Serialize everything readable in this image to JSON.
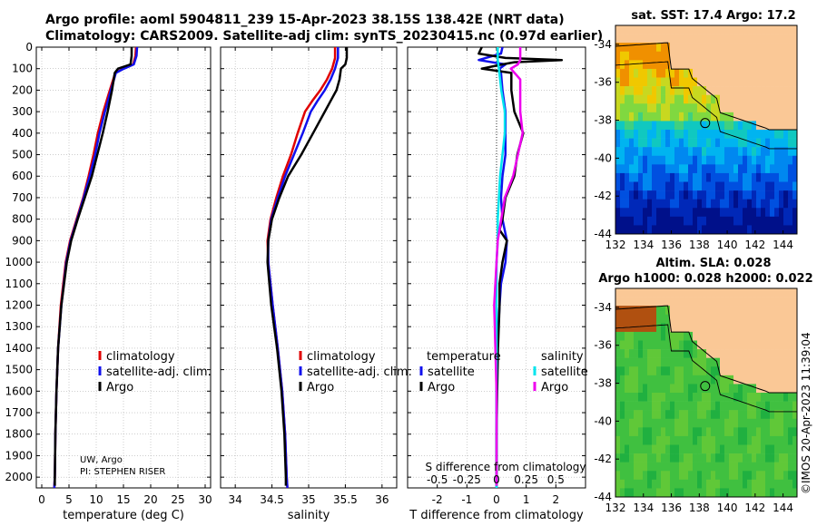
{
  "title_line1": "Argo profile: aoml 5904811_239 15-Apr-2023 38.15S 138.42E (NRT data)",
  "title_line2": "Climatology: CARS2009. Satellite-adj clim: synTS_20230415.nc (0.97d earlier)",
  "depth_ticks": [
    0,
    100,
    200,
    300,
    400,
    500,
    600,
    700,
    800,
    900,
    1000,
    1100,
    1200,
    1300,
    1400,
    1500,
    1600,
    1700,
    1800,
    1900,
    2000
  ],
  "colors": {
    "climatology": "#e00000",
    "satellite": "#1010ee",
    "argo": "#000000",
    "sal_sat": "#00e5ee",
    "sal_argo": "#ee00ee",
    "land": "#fac896",
    "grid": "#b0b0b0"
  },
  "chart_data": [
    {
      "type": "line",
      "panel": "temperature",
      "xlabel": "temperature (deg C)",
      "ylabel": "",
      "xlim": [
        -1,
        31
      ],
      "ylim": [
        2050,
        0
      ],
      "xticks": [
        "0",
        "5",
        "10",
        "15",
        "20",
        "25",
        "30"
      ],
      "xtick_values": [
        0,
        5,
        10,
        15,
        20,
        25,
        30
      ],
      "legend": [
        "climatology",
        "satellite-adj. clim.",
        "Argo"
      ],
      "series": [
        {
          "name": "climatology",
          "color": "#e00000",
          "depth": [
            0,
            40,
            80,
            100,
            120,
            200,
            300,
            400,
            500,
            600,
            700,
            800,
            900,
            1000,
            1200,
            1400,
            1600,
            1800,
            2000,
            2050
          ],
          "values": [
            17.3,
            17.2,
            16.8,
            15,
            13.5,
            12.5,
            11.3,
            10.3,
            9.5,
            8.6,
            7.6,
            6.4,
            5.2,
            4.4,
            3.5,
            3.0,
            2.7,
            2.5,
            2.4,
            2.3
          ]
        },
        {
          "name": "satellite-adj. clim.",
          "color": "#1010ee",
          "depth": [
            0,
            40,
            80,
            100,
            120,
            200,
            300,
            400,
            500,
            600,
            700,
            800,
            900,
            1000,
            1200,
            1400,
            1600,
            1800,
            2000,
            2050
          ],
          "values": [
            17.5,
            17.4,
            16.9,
            15.1,
            13.6,
            12.7,
            11.6,
            10.6,
            9.8,
            8.8,
            7.7,
            6.5,
            5.3,
            4.5,
            3.6,
            3.0,
            2.7,
            2.5,
            2.4,
            2.3
          ]
        },
        {
          "name": "Argo",
          "color": "#000000",
          "depth": [
            0,
            40,
            80,
            100,
            120,
            200,
            300,
            400,
            500,
            600,
            700,
            800,
            900,
            1000,
            1200,
            1400,
            1600,
            1800,
            2000,
            2040
          ],
          "values": [
            16.5,
            16.5,
            16.3,
            14.0,
            13.4,
            12.9,
            12.1,
            11.2,
            10.2,
            9.2,
            7.9,
            6.6,
            5.4,
            4.6,
            3.6,
            3.0,
            2.7,
            2.5,
            2.4,
            2.4
          ]
        }
      ]
    },
    {
      "type": "line",
      "panel": "salinity",
      "xlabel": "salinity",
      "ylabel": "",
      "xlim": [
        33.8,
        36.2
      ],
      "ylim": [
        2050,
        0
      ],
      "xticks": [
        "34",
        "34.5",
        "35",
        "35.5",
        "36"
      ],
      "xtick_values": [
        34,
        34.5,
        35,
        35.5,
        36
      ],
      "legend": [
        "climatology",
        "satellite-adj. clim.",
        "Argo"
      ],
      "series": [
        {
          "name": "climatology",
          "color": "#e00000",
          "depth": [
            0,
            50,
            100,
            150,
            200,
            250,
            300,
            400,
            500,
            600,
            700,
            800,
            900,
            1000,
            1200,
            1400,
            1600,
            1800,
            2000,
            2050
          ],
          "values": [
            35.36,
            35.36,
            35.32,
            35.25,
            35.16,
            35.05,
            34.95,
            34.85,
            34.76,
            34.65,
            34.56,
            34.48,
            34.44,
            34.45,
            34.51,
            34.58,
            34.64,
            34.68,
            34.7,
            34.71
          ]
        },
        {
          "name": "satellite-adj. clim.",
          "color": "#1010ee",
          "depth": [
            0,
            50,
            100,
            150,
            200,
            250,
            300,
            400,
            500,
            600,
            700,
            800,
            900,
            1000,
            1200,
            1400,
            1600,
            1800,
            2000,
            2050
          ],
          "values": [
            35.4,
            35.4,
            35.36,
            35.3,
            35.22,
            35.12,
            35.03,
            34.92,
            34.8,
            34.68,
            34.58,
            34.49,
            34.45,
            34.45,
            34.51,
            34.58,
            34.64,
            34.68,
            34.7,
            34.71
          ]
        },
        {
          "name": "Argo",
          "color": "#000000",
          "depth": [
            0,
            50,
            80,
            100,
            150,
            200,
            250,
            300,
            400,
            500,
            600,
            700,
            800,
            900,
            1000,
            1200,
            1400,
            1600,
            1800,
            2000,
            2040
          ],
          "values": [
            35.52,
            35.52,
            35.5,
            35.44,
            35.42,
            35.38,
            35.3,
            35.22,
            35.06,
            34.9,
            34.72,
            34.6,
            34.5,
            34.45,
            34.44,
            34.49,
            34.57,
            34.63,
            34.67,
            34.69,
            34.69
          ]
        }
      ]
    },
    {
      "type": "line",
      "panel": "difference",
      "xlabel": "T difference from climatology",
      "xlabel_top": "S difference from climatology",
      "ylabel": "",
      "xlim": [
        -3,
        3
      ],
      "ylim": [
        2050,
        0
      ],
      "xticks": [
        "-2",
        "-1",
        "0",
        "1",
        "2"
      ],
      "xtick_values": [
        -2,
        -1,
        0,
        1,
        2
      ],
      "s_ticks": [
        "-0.5",
        "-0.25",
        "0",
        "0.25",
        "0.5"
      ],
      "s_tick_values": [
        -0.5,
        -0.25,
        0,
        0.25,
        0.5
      ],
      "legend_temperature_title": "temperature",
      "legend_salinity_title": "salinity",
      "legend": [
        "satellite",
        "Argo",
        "satellite",
        "Argo"
      ],
      "series": [
        {
          "name": "satellite",
          "quantity": "temperature",
          "color": "#1010ee",
          "depth": [
            0,
            30,
            60,
            80,
            100,
            120,
            200,
            300,
            400,
            500,
            600,
            700,
            800,
            900,
            1000,
            1100,
            1200,
            1400,
            1600,
            1800,
            2000,
            2050
          ],
          "values": [
            0.2,
            0.15,
            -0.6,
            0.3,
            0.1,
            0.15,
            0.2,
            0.3,
            0.3,
            0.3,
            0.2,
            0.15,
            0.2,
            0.35,
            0.3,
            0.15,
            0.1,
            0.02,
            0,
            0,
            0,
            0
          ]
        },
        {
          "name": "Argo",
          "quantity": "temperature",
          "color": "#000000",
          "depth": [
            0,
            30,
            50,
            60,
            70,
            80,
            100,
            120,
            200,
            300,
            400,
            500,
            600,
            700,
            800,
            850,
            900,
            1000,
            1100,
            1200,
            1400,
            1600,
            1800,
            2000,
            2040
          ],
          "values": [
            -0.5,
            -0.6,
            0.3,
            2.2,
            0.6,
            0.2,
            -0.5,
            0.5,
            0.5,
            0.6,
            0.9,
            0.7,
            0.6,
            0.3,
            0.2,
            0.1,
            0.35,
            0.2,
            0.1,
            0.1,
            0.05,
            0.02,
            0,
            0,
            0
          ]
        },
        {
          "name": "satellite",
          "quantity": "salinity",
          "color": "#00e5ee",
          "depth": [
            0,
            60,
            100,
            200,
            300,
            400,
            500,
            600,
            700,
            800,
            900,
            1000,
            1100,
            1200,
            1400,
            1600,
            1800,
            2000,
            2050
          ],
          "values": [
            0.01,
            0.01,
            0.02,
            0.04,
            0.07,
            0.07,
            0.05,
            0.03,
            0.02,
            0.01,
            0.01,
            0.0,
            0.0,
            0.0,
            0.0,
            0.0,
            0.0,
            0.0,
            0.0
          ]
        },
        {
          "name": "Argo",
          "quantity": "salinity",
          "color": "#ee00ee",
          "depth": [
            0,
            60,
            80,
            100,
            150,
            200,
            300,
            400,
            500,
            600,
            700,
            800,
            900,
            1000,
            1200,
            1400,
            1600,
            1800,
            2000,
            2040
          ],
          "values": [
            0.2,
            0.2,
            0.18,
            0.12,
            0.2,
            0.2,
            0.2,
            0.22,
            0.18,
            0.14,
            0.07,
            0.04,
            0.01,
            0.0,
            -0.02,
            -0.01,
            0.0,
            0.0,
            0.0,
            0.0
          ]
        }
      ]
    },
    {
      "type": "heatmap",
      "panel": "map-sst",
      "title": "sat. SST: 17.4  Argo: 17.2",
      "xticks": [
        "132",
        "134",
        "136",
        "138",
        "140",
        "142",
        "144"
      ],
      "xtick_values": [
        132,
        134,
        136,
        138,
        140,
        142,
        144
      ],
      "yticks": [
        "-34",
        "-36",
        "-38",
        "-40",
        "-42",
        "-44"
      ],
      "ytick_values": [
        -34,
        -36,
        -38,
        -40,
        -42,
        -44
      ],
      "xlim": [
        132,
        145
      ],
      "ylim": [
        -44,
        -33
      ]
    },
    {
      "type": "heatmap",
      "panel": "map-sla",
      "title": "Altim. SLA: 0.028",
      "subtitle": "Argo h1000: 0.028 h2000: 0.022",
      "xticks": [
        "132",
        "134",
        "136",
        "138",
        "140",
        "142",
        "144"
      ],
      "xtick_values": [
        132,
        134,
        136,
        138,
        140,
        142,
        144
      ],
      "yticks": [
        "-34",
        "-36",
        "-38",
        "-40",
        "-42",
        "-44"
      ],
      "ytick_values": [
        -34,
        -36,
        -38,
        -40,
        -42,
        -44
      ],
      "xlim": [
        132,
        145
      ],
      "ylim": [
        -44,
        -33
      ]
    }
  ],
  "legend_labels": {
    "climatology": "climatology",
    "satellite_adj": "satellite-adj. clim.",
    "argo": "Argo",
    "temperature": "temperature",
    "salinity": "salinity",
    "satellite": "satellite"
  },
  "float_info": {
    "line1": "UW, Argo",
    "line2": "PI: STEPHEN RISER"
  },
  "argo_position": {
    "lon": 138.42,
    "lat": -38.15
  },
  "watermark": "©IMOS 20-Apr-2023 11:39:04"
}
